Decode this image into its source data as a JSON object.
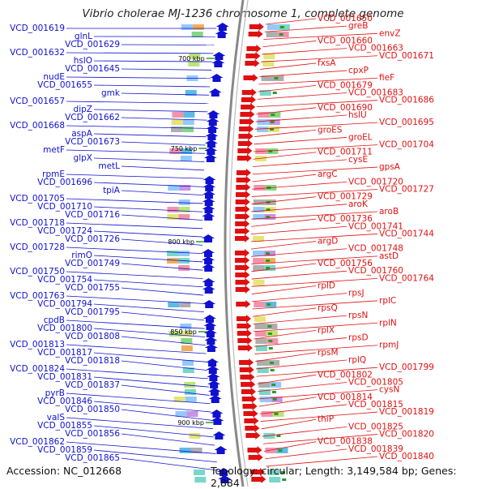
{
  "title": "Vibrio cholerae MJ-1236 chromosome 1, complete genome",
  "accession": "Accession: NC_012668",
  "summary": "Topology: circular; Length: 3,149,584 bp; Genes: 2,884",
  "colors": {
    "forward_genes": "#e01010",
    "reverse_genes": "#1010d0",
    "backbone": "#888888"
  },
  "scale_ticks": [
    "700 kbp",
    "750 kbp",
    "800 kbp",
    "850 kbp",
    "900 kbp"
  ],
  "left_labels": [
    "VCD_001619",
    "glnL",
    "VCD_001629",
    "VCD_001632",
    "hslO",
    "VCD_001645",
    "nudE",
    "VCD_001655",
    "gmk",
    "VCD_001657",
    "dipZ",
    "VCD_001662",
    "VCD_001668",
    "aspA",
    "VCD_001673",
    "metF",
    "glpX",
    "metL",
    "rpmE",
    "VCD_001696",
    "tpiA",
    "VCD_001705",
    "VCD_001710",
    "VCD_001716",
    "VCD_001718",
    "VCD_001724",
    "VCD_001726",
    "VCD_001728",
    "rimO",
    "VCD_001749",
    "VCD_001750",
    "VCD_001754",
    "VCD_001755",
    "VCD_001763",
    "VCD_001794",
    "VCD_001795",
    "cpdB",
    "VCD_001800",
    "VCD_001808",
    "VCD_001813",
    "VCD_001817",
    "VCD_001818",
    "VCD_001824",
    "VCD_001831",
    "VCD_001837",
    "pyrB",
    "VCD_001846",
    "VCD_001850",
    "valS",
    "VCD_001855",
    "VCD_001856",
    "VCD_001862",
    "VCD_001859",
    "VCD_001865"
  ],
  "right_labels": [
    "VCD_001650",
    "greB",
    "envZ",
    "VCD_001660",
    "VCD_001663",
    "VCD_001671",
    "fxsA",
    "cpxP",
    "fieF",
    "VCD_001679",
    "VCD_001683",
    "VCD_001686",
    "VCD_001690",
    "hslU",
    "VCD_001695",
    "groES",
    "groEL",
    "VCD_001704",
    "VCD_001711",
    "cysE",
    "gpsA",
    "argC",
    "VCD_001720",
    "VCD_001727",
    "VCD_001729",
    "aroK",
    "aroB",
    "VCD_001736",
    "VCD_001741",
    "VCD_001744",
    "argD",
    "VCD_001748",
    "astD",
    "VCD_001756",
    "VCD_001760",
    "VCD_001764",
    "rplD",
    "rpsJ",
    "rplC",
    "rpsQ",
    "rpsN",
    "rplN",
    "rplX",
    "rpsD",
    "rpmJ",
    "rpsM",
    "rplQ",
    "VCD_001799",
    "VCD_001802",
    "VCD_001805",
    "cysN",
    "VCD_001814",
    "VCD_001815",
    "VCD_001819",
    "thiP",
    "VCD_001825",
    "VCD_001820",
    "VCD_001838",
    "VCD_001839",
    "VCD_001840"
  ]
}
